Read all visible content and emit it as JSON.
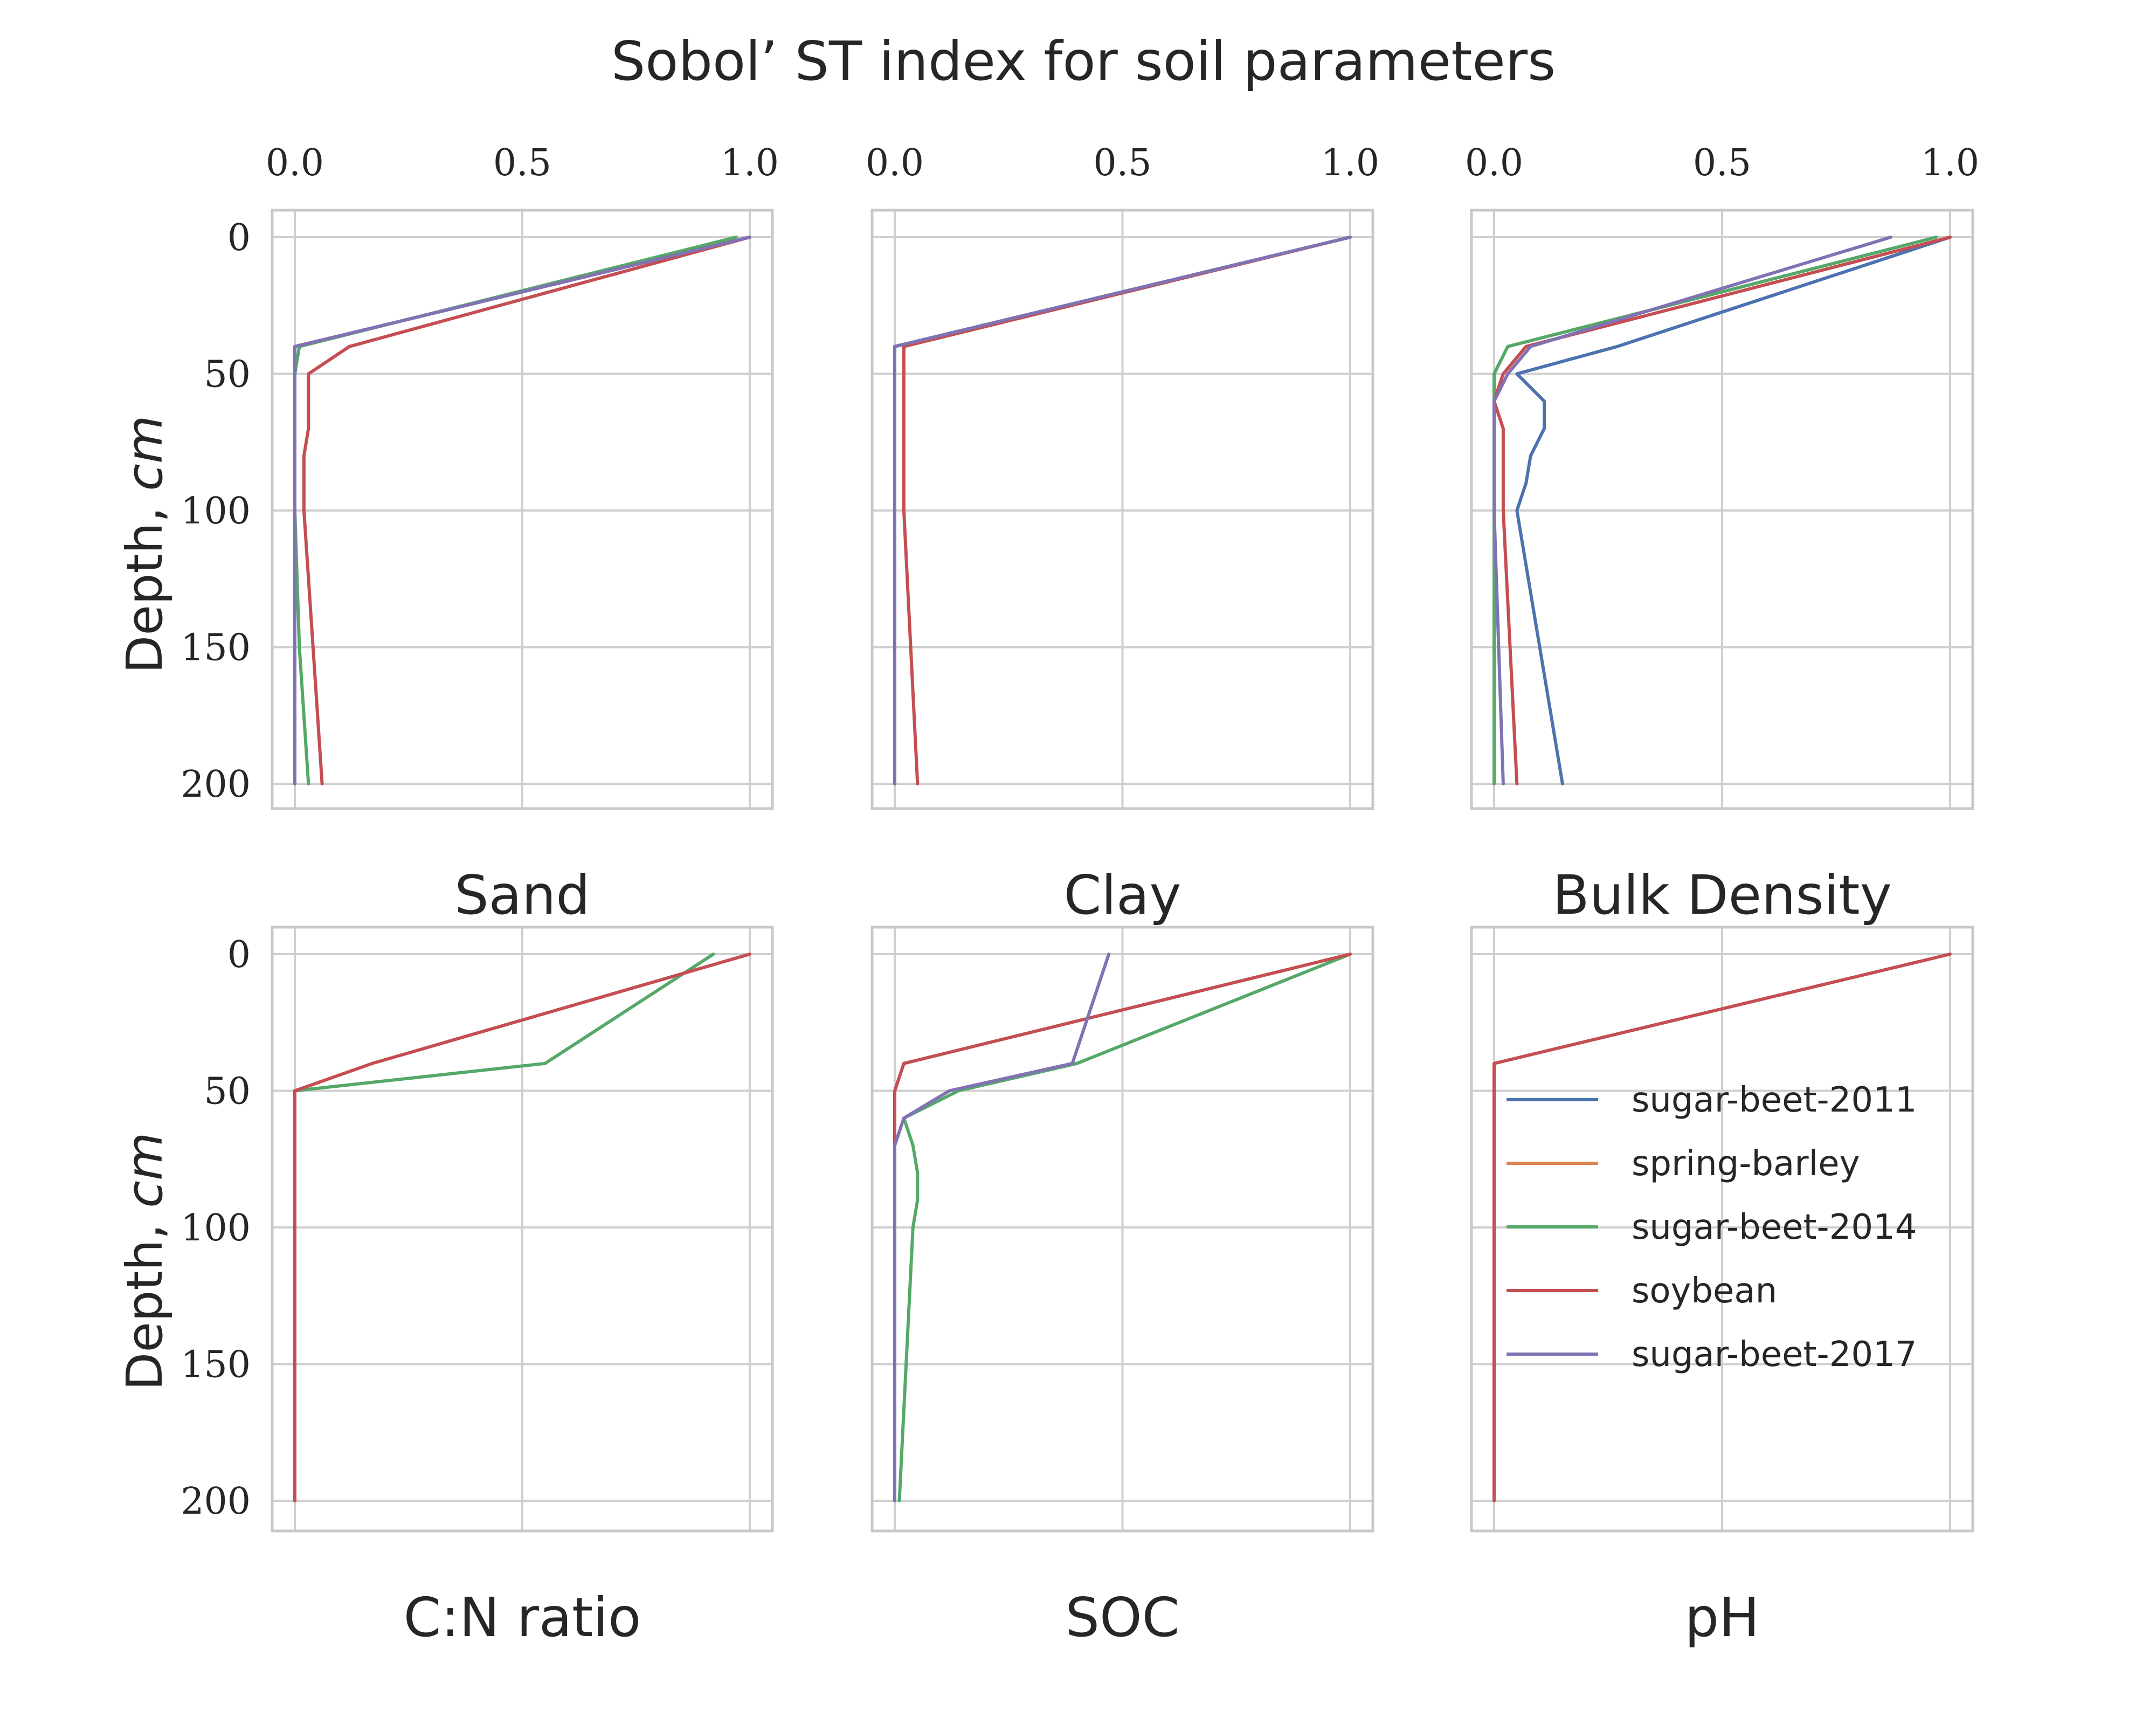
{
  "figure": {
    "title": "Sobol’ ST index for soil parameters",
    "ylabel": "Depth, cm",
    "ylabel_main": "Depth, ",
    "ylabel_unit": "cm"
  },
  "chart_data": [
    {
      "type": "line",
      "title": "Sand",
      "xlim": [
        0,
        1
      ],
      "ylim": [
        0,
        200
      ],
      "y_inverted": true,
      "x_ticks": [
        "0.0",
        "0.5",
        "1.0"
      ],
      "y_ticks": [
        "0",
        "50",
        "100",
        "150",
        "200"
      ],
      "series": [
        {
          "name": "sugar-beet-2011",
          "color": "#4C72B0",
          "x": [
            1.0,
            0.0,
            0.0,
            0.0,
            0.0,
            0.0,
            0.0,
            0.0
          ],
          "y": [
            0,
            40,
            50,
            70,
            80,
            100,
            150,
            200
          ]
        },
        {
          "name": "spring-barley",
          "color": "#DD8452",
          "x": [],
          "y": []
        },
        {
          "name": "sugar-beet-2014",
          "color": "#55A868",
          "x": [
            0.97,
            0.01,
            0.0,
            0.0,
            0.0,
            0.0,
            0.01,
            0.03
          ],
          "y": [
            0,
            40,
            50,
            70,
            80,
            100,
            150,
            200
          ]
        },
        {
          "name": "soybean",
          "color": "#C44E52",
          "x": [
            1.0,
            0.12,
            0.03,
            0.03,
            0.02,
            0.02,
            0.04,
            0.06
          ],
          "y": [
            0,
            40,
            50,
            70,
            80,
            100,
            150,
            200
          ]
        },
        {
          "name": "sugar-beet-2017",
          "color": "#8172B3",
          "x": [
            1.0,
            0.0,
            0.0,
            0.0,
            0.0,
            0.0,
            0.0,
            0.0
          ],
          "y": [
            0,
            40,
            50,
            70,
            80,
            100,
            150,
            200
          ]
        }
      ]
    },
    {
      "type": "line",
      "title": "Clay",
      "xlim": [
        0,
        1
      ],
      "ylim": [
        0,
        200
      ],
      "y_inverted": true,
      "x_ticks": [
        "0.0",
        "0.5",
        "1.0"
      ],
      "y_ticks": [],
      "series": [
        {
          "name": "sugar-beet-2011",
          "color": "#4C72B0",
          "x": [
            1.0,
            0.0,
            0.0,
            0.0,
            0.0
          ],
          "y": [
            0,
            40,
            50,
            100,
            200
          ]
        },
        {
          "name": "spring-barley",
          "color": "#DD8452",
          "x": [],
          "y": []
        },
        {
          "name": "sugar-beet-2014",
          "color": "#55A868",
          "x": [
            1.0,
            0.0,
            0.0,
            0.0,
            0.0
          ],
          "y": [
            0,
            40,
            50,
            100,
            200
          ]
        },
        {
          "name": "soybean",
          "color": "#C44E52",
          "x": [
            1.0,
            0.02,
            0.02,
            0.02,
            0.05
          ],
          "y": [
            0,
            40,
            50,
            100,
            200
          ]
        },
        {
          "name": "sugar-beet-2017",
          "color": "#8172B3",
          "x": [
            1.0,
            0.0,
            0.0,
            0.0,
            0.0
          ],
          "y": [
            0,
            40,
            50,
            100,
            200
          ]
        }
      ]
    },
    {
      "type": "line",
      "title": "Bulk Density",
      "xlim": [
        0,
        1
      ],
      "ylim": [
        0,
        200
      ],
      "y_inverted": true,
      "x_ticks": [
        "0.0",
        "0.5",
        "1.0"
      ],
      "y_ticks": [],
      "series": [
        {
          "name": "sugar-beet-2011",
          "color": "#4C72B0",
          "x": [
            1.0,
            0.27,
            0.05,
            0.11,
            0.11,
            0.08,
            0.07,
            0.05,
            0.15
          ],
          "y": [
            0,
            40,
            50,
            60,
            70,
            80,
            90,
            100,
            200
          ]
        },
        {
          "name": "spring-barley",
          "color": "#DD8452",
          "x": [],
          "y": []
        },
        {
          "name": "sugar-beet-2014",
          "color": "#55A868",
          "x": [
            0.97,
            0.03,
            0.0,
            0.0,
            0.0,
            0.0,
            0.0,
            0.0,
            0.0
          ],
          "y": [
            0,
            40,
            50,
            60,
            70,
            80,
            90,
            100,
            200
          ]
        },
        {
          "name": "soybean",
          "color": "#C44E52",
          "x": [
            1.0,
            0.07,
            0.02,
            0.0,
            0.02,
            0.02,
            0.02,
            0.02,
            0.05
          ],
          "y": [
            0,
            40,
            50,
            60,
            70,
            80,
            90,
            100,
            200
          ]
        },
        {
          "name": "sugar-beet-2017",
          "color": "#8172B3",
          "x": [
            0.87,
            0.08,
            0.03,
            0.0,
            0.0,
            0.0,
            0.0,
            0.0,
            0.02
          ],
          "y": [
            0,
            40,
            50,
            60,
            70,
            80,
            90,
            100,
            200
          ]
        }
      ]
    },
    {
      "type": "line",
      "title": "C:N ratio",
      "xlim": [
        0,
        1
      ],
      "ylim": [
        0,
        200
      ],
      "y_inverted": true,
      "x_ticks": [],
      "y_ticks": [
        "0",
        "50",
        "100",
        "150",
        "200"
      ],
      "series": [
        {
          "name": "sugar-beet-2014",
          "color": "#55A868",
          "x": [
            0.92,
            0.55,
            0.0,
            0.0
          ],
          "y": [
            0,
            40,
            50,
            200
          ]
        },
        {
          "name": "soybean",
          "color": "#C44E52",
          "x": [
            1.0,
            0.17,
            0.0,
            0.0
          ],
          "y": [
            0,
            40,
            50,
            200
          ]
        }
      ]
    },
    {
      "type": "line",
      "title": "SOC",
      "xlim": [
        0,
        1
      ],
      "ylim": [
        0,
        200
      ],
      "y_inverted": true,
      "x_ticks": [],
      "y_ticks": [],
      "series": [
        {
          "name": "sugar-beet-2014",
          "color": "#55A868",
          "x": [
            1.0,
            0.4,
            0.14,
            0.02,
            0.04,
            0.05,
            0.05,
            0.04,
            0.01
          ],
          "y": [
            0,
            40,
            50,
            60,
            70,
            80,
            90,
            100,
            200
          ]
        },
        {
          "name": "soybean",
          "color": "#C44E52",
          "x": [
            1.0,
            0.02,
            0.0,
            0.0,
            0.0,
            0.0,
            0.0,
            0.0
          ],
          "y": [
            0,
            40,
            50,
            60,
            70,
            80,
            100,
            200
          ]
        },
        {
          "name": "sugar-beet-2017",
          "color": "#8172B3",
          "x": [
            0.47,
            0.39,
            0.12,
            0.02,
            0.0,
            0.0,
            0.0,
            0.0
          ],
          "y": [
            0,
            40,
            50,
            60,
            70,
            80,
            100,
            200
          ]
        }
      ]
    },
    {
      "type": "line",
      "title": "pH",
      "xlim": [
        0,
        1
      ],
      "ylim": [
        0,
        200
      ],
      "y_inverted": true,
      "x_ticks": [],
      "y_ticks": [],
      "series": [
        {
          "name": "soybean",
          "color": "#C44E52",
          "x": [
            1.0,
            0.0,
            0.0,
            0.0
          ],
          "y": [
            0,
            40,
            50,
            200
          ]
        }
      ]
    }
  ],
  "legend": {
    "placement": "inside pH panel, center-right",
    "entries": [
      {
        "label": "sugar-beet-2011",
        "color": "#4C72B0"
      },
      {
        "label": "spring-barley",
        "color": "#DD8452"
      },
      {
        "label": "sugar-beet-2014",
        "color": "#55A868"
      },
      {
        "label": "soybean",
        "color": "#C44E52"
      },
      {
        "label": "sugar-beet-2017",
        "color": "#8172B3"
      }
    ]
  }
}
